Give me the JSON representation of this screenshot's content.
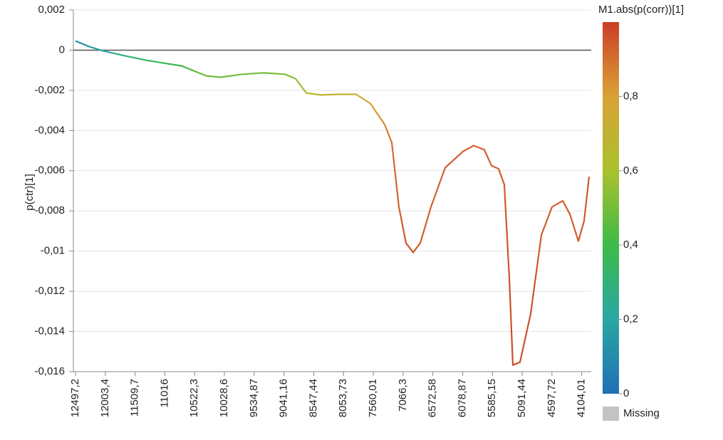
{
  "chart_data": {
    "type": "line",
    "y_label": "p(ctr)[1]",
    "x": [
      12497.2,
      12272.8,
      12036.6,
      11682.3,
      11328.0,
      10973.7,
      10737.5,
      10560.4,
      10324.2,
      10088.0,
      9733.7,
      9379.4,
      9025.1,
      8848.0,
      8670.8,
      8434.6,
      8139.4,
      7844.1,
      7607.9,
      7371.7,
      7253.6,
      7135.5,
      7017.4,
      6899.3,
      6781.2,
      6604.1,
      6367.9,
      6072.6,
      5895.5,
      5718.4,
      5600.3,
      5482.2,
      5387.7,
      5305.0,
      5246.0,
      5127.9,
      4950.8,
      4773.6,
      4596.5,
      4419.4,
      4301.3,
      4159.5,
      4065.0,
      3982.4
    ],
    "values": [
      0.00046,
      0.00018,
      -4e-05,
      -0.00028,
      -0.0005,
      -0.00067,
      -0.00078,
      -0.001,
      -0.00128,
      -0.00135,
      -0.0012,
      -0.00113,
      -0.0012,
      -0.00142,
      -0.00213,
      -0.00223,
      -0.0022,
      -0.0022,
      -0.00266,
      -0.0037,
      -0.0046,
      -0.0078,
      -0.0096,
      -0.01007,
      -0.0096,
      -0.0078,
      -0.00585,
      -0.00504,
      -0.00475,
      -0.00496,
      -0.00575,
      -0.0059,
      -0.0067,
      -0.01135,
      -0.01567,
      -0.01553,
      -0.01312,
      -0.0092,
      -0.0078,
      -0.0075,
      -0.00816,
      -0.0095,
      -0.0085,
      -0.0063
    ],
    "color_values": [
      0.1,
      0.15,
      0.2,
      0.28,
      0.33,
      0.38,
      0.4,
      0.45,
      0.5,
      0.5,
      0.5,
      0.5,
      0.52,
      0.55,
      0.65,
      0.68,
      0.7,
      0.72,
      0.78,
      0.85,
      0.9,
      0.93,
      0.95,
      0.95,
      0.93,
      0.93,
      0.93,
      0.93,
      0.93,
      0.93,
      0.93,
      0.93,
      0.94,
      0.96,
      0.97,
      0.97,
      0.96,
      0.94,
      0.93,
      0.93,
      0.93,
      0.94,
      0.94,
      0.94
    ],
    "xlim": [
      12532.6,
      3946.8
    ],
    "xticks": [
      {
        "value": 12497.2,
        "label": "12497,2"
      },
      {
        "value": 12003.4,
        "label": "12003,4"
      },
      {
        "value": 11509.7,
        "label": "11509,7"
      },
      11016,
      {
        "value": 10522.3,
        "label": "10522,3"
      },
      {
        "value": 10028.6,
        "label": "10028,6"
      },
      {
        "value": 9534.87,
        "label": "9534,87"
      },
      {
        "value": 9041.16,
        "label": "9041,16"
      },
      {
        "value": 8547.44,
        "label": "8547,44"
      },
      {
        "value": 8053.73,
        "label": "8053,73"
      },
      {
        "value": 7560.01,
        "label": "7560,01"
      },
      {
        "value": 7066.3,
        "label": "7066,3"
      },
      {
        "value": 6572.58,
        "label": "6572,58"
      },
      {
        "value": 6078.87,
        "label": "6078,87"
      },
      {
        "value": 5585.15,
        "label": "5585,15"
      },
      {
        "value": 5091.44,
        "label": "5091,44"
      },
      {
        "value": 4597.72,
        "label": "4597,72"
      },
      {
        "value": 4104.01,
        "label": "4104,01"
      }
    ],
    "ylim": [
      -0.016,
      0.002
    ],
    "yticks": [
      {
        "value": 0.002,
        "label": "0,002"
      },
      0,
      {
        "value": -0.002,
        "label": "-0,002"
      },
      {
        "value": -0.004,
        "label": "-0,004"
      },
      {
        "value": -0.006,
        "label": "-0,006"
      },
      {
        "value": -0.008,
        "label": "-0,008"
      },
      {
        "value": -0.01,
        "label": "-0,01"
      },
      {
        "value": -0.012,
        "label": "-0,012"
      },
      {
        "value": -0.014,
        "label": "-0,014"
      },
      {
        "value": -0.016,
        "label": "-0,016"
      }
    ],
    "grid": true,
    "colorbar": {
      "title": "M1.abs(p(corr))[1]",
      "lim": [
        0,
        1
      ],
      "ticks": [
        0,
        {
          "value": 0.2,
          "label": "0,2"
        },
        {
          "value": 0.4,
          "label": "0,4"
        },
        {
          "value": 0.6,
          "label": "0,6"
        },
        {
          "value": 0.8,
          "label": "0,8"
        }
      ],
      "colors": [
        "#1f6fb4",
        "#2aa7a2",
        "#3dba48",
        "#a9c22e",
        "#daa234",
        "#cb3d28"
      ],
      "missing_label": "Missing",
      "missing_color": "#c3c3c3"
    }
  }
}
